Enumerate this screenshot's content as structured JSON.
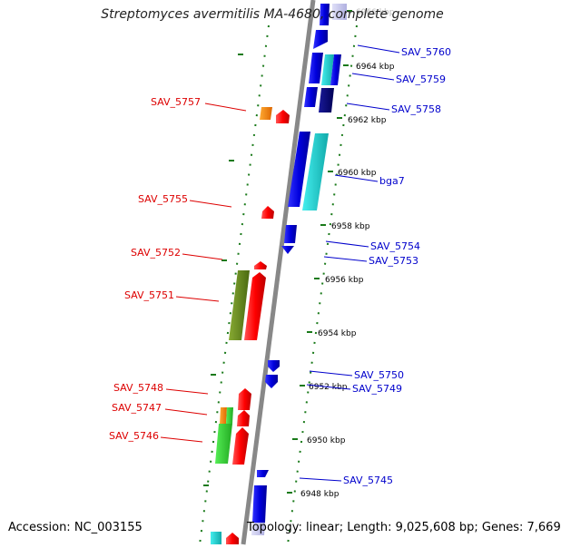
{
  "title": "Streptomyces avermitilis MA-4680, complete genome",
  "footer": {
    "accession": "Accession: NC_003155",
    "topology": "Topology: linear; Length: 9,025,608 bp; Genes: 7,669"
  },
  "colors": {
    "backbone": "#888888",
    "tick": "#1a7a1a",
    "label_left": "#dd0000",
    "label_right": "#0000cc",
    "blue": "#0000ee",
    "navy": "#000080",
    "cyan": "#22d4d4",
    "red": "#ff0000",
    "orange": "#ff8800",
    "olive": "#6b8e23",
    "green": "#33cc33",
    "pale": "#c8c8ee"
  },
  "scale_labels": [
    "6966 kbp",
    "6964 kbp",
    "6962 kbp",
    "6960 kbp",
    "6958 kbp",
    "6956 kbp",
    "6954 kbp",
    "6952 kbp",
    "6950 kbp",
    "6948 kbp"
  ],
  "gene_labels_left": [
    "SAV_5757",
    "SAV_5755",
    "SAV_5752",
    "SAV_5751",
    "SAV_5748",
    "SAV_5747",
    "SAV_5746"
  ],
  "gene_labels_right": [
    "SAV_5760",
    "SAV_5759",
    "SAV_5758",
    "bga7",
    "SAV_5754",
    "SAV_5753",
    "SAV_5750",
    "SAV_5749",
    "SAV_5745"
  ]
}
